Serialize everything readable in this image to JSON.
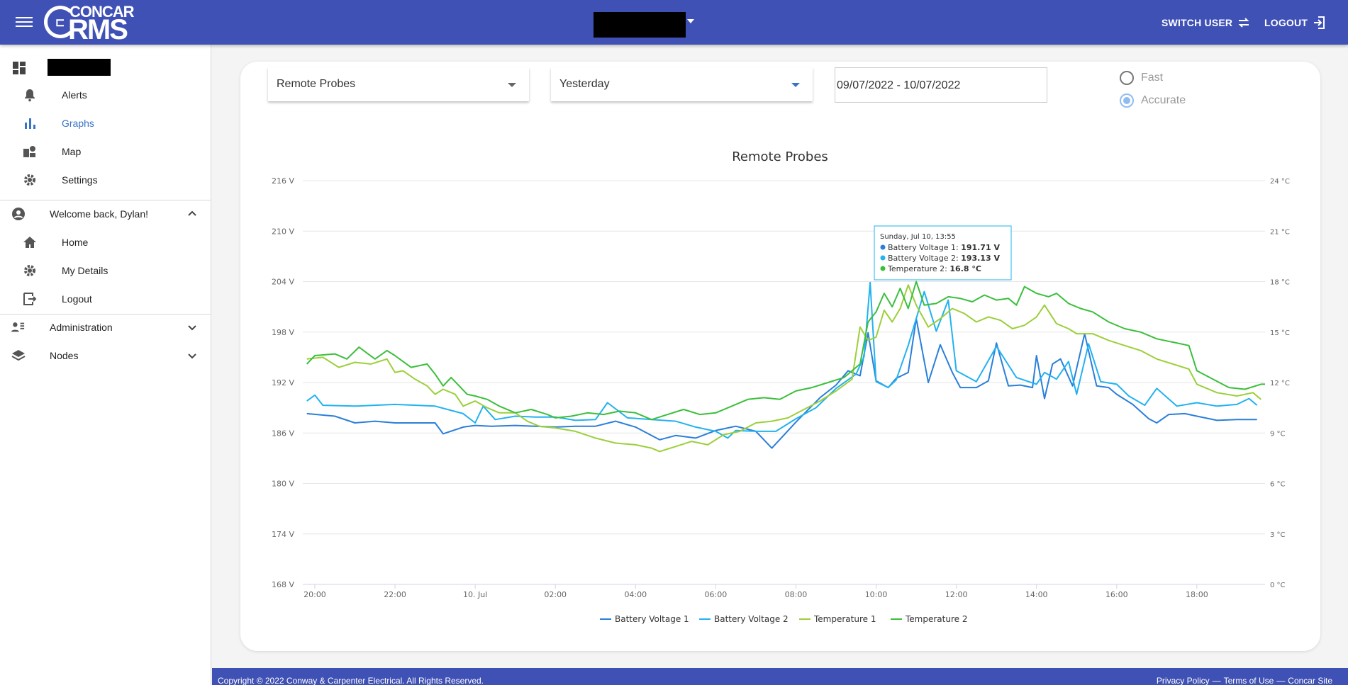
{
  "header": {
    "switch_user_label": "SWITCH USER",
    "logout_label": "LOGOUT",
    "logo_top": "CONCAR",
    "logo_bottom": "RMS"
  },
  "sidebar": {
    "items": [
      {
        "label": "Alerts",
        "icon": "bell-icon"
      },
      {
        "label": "Graphs",
        "icon": "bar-chart-icon",
        "active": true
      },
      {
        "label": "Map",
        "icon": "map-icon"
      },
      {
        "label": "Settings",
        "icon": "gear-icon"
      }
    ],
    "user_section": {
      "label": "Welcome back, Dylan!",
      "items": [
        {
          "label": "Home",
          "icon": "home-icon"
        },
        {
          "label": "My Details",
          "icon": "gear-icon"
        },
        {
          "label": "Logout",
          "icon": "logout-icon"
        }
      ]
    },
    "administration_label": "Administration",
    "nodes_label": "Nodes"
  },
  "controls": {
    "graph_select": "Remote Probes",
    "period_select": "Yesterday",
    "date_range": "09/07/2022 - 10/07/2022",
    "mode_options": [
      {
        "label": "Fast",
        "selected": false
      },
      {
        "label": "Accurate",
        "selected": true
      }
    ]
  },
  "colors": {
    "header": "#3f51b5",
    "battery_voltage_1": "#2a7fd9",
    "battery_voltage_2": "#22b2f0",
    "temperature_1": "#9ccf3a",
    "temperature_2": "#3bbf3b"
  },
  "tooltip": {
    "title": "Sunday, Jul 10, 13:55",
    "rows": [
      {
        "name": "Battery Voltage 1",
        "value": "191.71 V",
        "color": "#2a7fd9"
      },
      {
        "name": "Battery Voltage 2",
        "value": "193.13 V",
        "color": "#22b2f0"
      },
      {
        "name": "Temperature 2",
        "value": "16.8 °C",
        "color": "#3bbf3b"
      }
    ]
  },
  "chart_data": {
    "type": "line",
    "title": "Remote Probes",
    "y_left_ticks": [
      "216 V",
      "210 V",
      "204 V",
      "198 V",
      "192 V",
      "186 V",
      "180 V",
      "174 V",
      "168 V"
    ],
    "y_right_ticks": [
      "24 °C",
      "21 °C",
      "18 °C",
      "15 °C",
      "12 °C",
      "9 °C",
      "6 °C",
      "3 °C",
      "0 °C"
    ],
    "ylim_left": [
      168,
      216
    ],
    "ylim_right": [
      0,
      24
    ],
    "x_ticks": [
      "20:00",
      "22:00",
      "10. Jul",
      "02:00",
      "04:00",
      "06:00",
      "08:00",
      "10:00",
      "12:00",
      "14:00",
      "16:00",
      "18:00"
    ],
    "x_hours": [
      -4,
      -2,
      0,
      2,
      4,
      6,
      8,
      10,
      12,
      14,
      16,
      18
    ],
    "xlim_hours": [
      -4.3,
      19.7
    ],
    "legend_position": "bottom",
    "series": [
      {
        "name": "Battery Voltage 1",
        "axis": "left",
        "points": [
          [
            -4.2,
            188.3
          ],
          [
            -3.5,
            188
          ],
          [
            -3,
            187.2
          ],
          [
            -2.5,
            187.4
          ],
          [
            -2,
            187.2
          ],
          [
            -1,
            187.2
          ],
          [
            -0.8,
            185.9
          ],
          [
            -0.3,
            186.7
          ],
          [
            0,
            186.9
          ],
          [
            0.4,
            186.8
          ],
          [
            1,
            186.9
          ],
          [
            1.5,
            186.8
          ],
          [
            2,
            186.7
          ],
          [
            2.5,
            186.8
          ],
          [
            3,
            186.8
          ],
          [
            3.5,
            187.4
          ],
          [
            4,
            186.7
          ],
          [
            4.6,
            185.2
          ],
          [
            5,
            185.7
          ],
          [
            5.5,
            185.4
          ],
          [
            6,
            186.3
          ],
          [
            6.5,
            186.8
          ],
          [
            7,
            186.2
          ],
          [
            7.4,
            184.2
          ],
          [
            8,
            187.3
          ],
          [
            8.6,
            190.2
          ],
          [
            9,
            191.7
          ],
          [
            9.3,
            193.4
          ],
          [
            9.6,
            192.8
          ],
          [
            9.8,
            197.9
          ],
          [
            10,
            192.2
          ],
          [
            10.3,
            191.4
          ],
          [
            10.5,
            192.5
          ],
          [
            10.8,
            193.2
          ],
          [
            11,
            199.6
          ],
          [
            11.3,
            192
          ],
          [
            11.6,
            196.5
          ],
          [
            11.9,
            193.2
          ],
          [
            12.1,
            191.4
          ],
          [
            12.5,
            191.4
          ],
          [
            12.8,
            192.2
          ],
          [
            13,
            196.7
          ],
          [
            13.3,
            191.6
          ],
          [
            13.6,
            191.7
          ],
          [
            13.9,
            191.4
          ],
          [
            14,
            195.2
          ],
          [
            14.2,
            190.1
          ],
          [
            14.4,
            194.2
          ],
          [
            14.6,
            194.8
          ],
          [
            14.9,
            191.6
          ],
          [
            15.2,
            197.8
          ],
          [
            15.5,
            191.6
          ],
          [
            15.8,
            191.4
          ],
          [
            16,
            190.6
          ],
          [
            16.4,
            189.4
          ],
          [
            16.8,
            187.7
          ],
          [
            17,
            187.2
          ],
          [
            17.3,
            188.2
          ],
          [
            17.7,
            188.3
          ],
          [
            18,
            188
          ],
          [
            18.5,
            187.5
          ],
          [
            19,
            187.6
          ],
          [
            19.5,
            187.6
          ]
        ]
      },
      {
        "name": "Battery Voltage 2",
        "axis": "left",
        "points": [
          [
            -4.2,
            189.8
          ],
          [
            -4,
            190.5
          ],
          [
            -3.8,
            189.3
          ],
          [
            -3,
            189.2
          ],
          [
            -2,
            189.4
          ],
          [
            -1,
            189.2
          ],
          [
            -0.3,
            188.3
          ],
          [
            0,
            187.2
          ],
          [
            0.2,
            189.2
          ],
          [
            0.5,
            187.6
          ],
          [
            1,
            188
          ],
          [
            1.5,
            187.9
          ],
          [
            2,
            187.9
          ],
          [
            2.5,
            187.5
          ],
          [
            3,
            187.6
          ],
          [
            3.3,
            189.6
          ],
          [
            3.8,
            187.8
          ],
          [
            4.4,
            187.6
          ],
          [
            5,
            187.4
          ],
          [
            5.5,
            186.7
          ],
          [
            6,
            186.2
          ],
          [
            6.3,
            185.4
          ],
          [
            6.5,
            186.3
          ],
          [
            7,
            186.2
          ],
          [
            7.5,
            186.2
          ],
          [
            8,
            187.7
          ],
          [
            8.5,
            189
          ],
          [
            9,
            191.3
          ],
          [
            9.5,
            193
          ],
          [
            9.7,
            195.1
          ],
          [
            9.85,
            203.9
          ],
          [
            10,
            192.1
          ],
          [
            10.3,
            191.4
          ],
          [
            10.5,
            192.3
          ],
          [
            10.8,
            196.4
          ],
          [
            11.2,
            202.8
          ],
          [
            11.5,
            198.1
          ],
          [
            11.8,
            201.8
          ],
          [
            12,
            193.4
          ],
          [
            12.5,
            192.1
          ],
          [
            13,
            196.3
          ],
          [
            13.5,
            192.6
          ],
          [
            14,
            191.8
          ],
          [
            14.2,
            193.2
          ],
          [
            14.5,
            192.4
          ],
          [
            14.8,
            194.5
          ],
          [
            15,
            190.6
          ],
          [
            15.3,
            196.6
          ],
          [
            15.6,
            192.1
          ],
          [
            16,
            191.8
          ],
          [
            16.3,
            190.4
          ],
          [
            16.7,
            189.3
          ],
          [
            17,
            191.3
          ],
          [
            17.5,
            189.2
          ],
          [
            18,
            189.6
          ],
          [
            18.5,
            189.2
          ],
          [
            19,
            189.4
          ],
          [
            19.3,
            190.1
          ],
          [
            19.5,
            189.3
          ]
        ]
      },
      {
        "name": "Temperature 1",
        "axis": "right",
        "points": [
          [
            -4.2,
            13.4
          ],
          [
            -3.8,
            13.5
          ],
          [
            -3.4,
            12.9
          ],
          [
            -3,
            13.2
          ],
          [
            -2.6,
            13.1
          ],
          [
            -2.2,
            13.4
          ],
          [
            -2,
            12.6
          ],
          [
            -1.8,
            12.7
          ],
          [
            -1.5,
            12.2
          ],
          [
            -1.2,
            11.8
          ],
          [
            -1,
            11.3
          ],
          [
            -0.8,
            11.6
          ],
          [
            -0.5,
            11.3
          ],
          [
            -0.3,
            10.6
          ],
          [
            0,
            10.9
          ],
          [
            0.3,
            10.5
          ],
          [
            0.6,
            10.2
          ],
          [
            1,
            10.2
          ],
          [
            1.3,
            9.7
          ],
          [
            1.6,
            9.4
          ],
          [
            2,
            9.3
          ],
          [
            2.5,
            9.1
          ],
          [
            3,
            8.7
          ],
          [
            3.5,
            8.4
          ],
          [
            4,
            8.3
          ],
          [
            4.4,
            8.1
          ],
          [
            4.6,
            7.9
          ],
          [
            5,
            8.2
          ],
          [
            5.4,
            8.5
          ],
          [
            5.8,
            8.3
          ],
          [
            6.2,
            8.9
          ],
          [
            6.6,
            9.1
          ],
          [
            7,
            9.6
          ],
          [
            7.4,
            9.7
          ],
          [
            7.8,
            9.9
          ],
          [
            8.2,
            10.4
          ],
          [
            8.6,
            10.9
          ],
          [
            9,
            11.5
          ],
          [
            9.4,
            12.2
          ],
          [
            9.6,
            15.3
          ],
          [
            9.8,
            14.5
          ],
          [
            10,
            14.7
          ],
          [
            10.2,
            16.3
          ],
          [
            10.4,
            15.6
          ],
          [
            10.6,
            16.4
          ],
          [
            10.8,
            17.8
          ],
          [
            11,
            16.6
          ],
          [
            11.3,
            15.3
          ],
          [
            11.6,
            15.8
          ],
          [
            11.9,
            16.4
          ],
          [
            12.2,
            16.1
          ],
          [
            12.5,
            15.6
          ],
          [
            12.8,
            15.9
          ],
          [
            13.1,
            15.7
          ],
          [
            13.4,
            15.2
          ],
          [
            13.7,
            15.4
          ],
          [
            14,
            15.9
          ],
          [
            14.2,
            16.6
          ],
          [
            14.5,
            15.5
          ],
          [
            14.8,
            15.2
          ],
          [
            15,
            14.9
          ],
          [
            15.4,
            14.9
          ],
          [
            15.8,
            14.5
          ],
          [
            16.2,
            14.2
          ],
          [
            16.6,
            13.9
          ],
          [
            17,
            13.4
          ],
          [
            17.4,
            13.1
          ],
          [
            17.8,
            12.8
          ],
          [
            18,
            11.9
          ],
          [
            18.5,
            11.4
          ],
          [
            19,
            11.2
          ],
          [
            19.4,
            11.4
          ],
          [
            19.6,
            11.0
          ]
        ]
      },
      {
        "name": "Temperature 2",
        "axis": "right",
        "points": [
          [
            -4.2,
            13.1
          ],
          [
            -4,
            13.6
          ],
          [
            -3.5,
            13.7
          ],
          [
            -3.2,
            13.4
          ],
          [
            -2.9,
            14.1
          ],
          [
            -2.5,
            13.4
          ],
          [
            -2.2,
            13.9
          ],
          [
            -2,
            13.6
          ],
          [
            -1.6,
            12.9
          ],
          [
            -1.2,
            13.1
          ],
          [
            -1,
            12.5
          ],
          [
            -0.8,
            11.8
          ],
          [
            -0.6,
            12.3
          ],
          [
            -0.2,
            11.3
          ],
          [
            0,
            11.2
          ],
          [
            0.3,
            11.0
          ],
          [
            0.6,
            10.6
          ],
          [
            1,
            10.2
          ],
          [
            1.4,
            10.4
          ],
          [
            1.8,
            10.1
          ],
          [
            2,
            9.9
          ],
          [
            2.4,
            10.0
          ],
          [
            2.8,
            10.2
          ],
          [
            3.2,
            10.1
          ],
          [
            3.6,
            10.3
          ],
          [
            4,
            10.2
          ],
          [
            4.4,
            9.8
          ],
          [
            4.8,
            10.1
          ],
          [
            5.2,
            10.4
          ],
          [
            5.6,
            10.1
          ],
          [
            6,
            10.2
          ],
          [
            6.4,
            10.6
          ],
          [
            6.8,
            11.0
          ],
          [
            7.2,
            11.1
          ],
          [
            7.6,
            11.0
          ],
          [
            8,
            11.5
          ],
          [
            8.4,
            11.7
          ],
          [
            8.8,
            12.0
          ],
          [
            9.2,
            12.3
          ],
          [
            9.6,
            13.1
          ],
          [
            9.8,
            15.6
          ],
          [
            10,
            16.2
          ],
          [
            10.2,
            17.3
          ],
          [
            10.4,
            16.5
          ],
          [
            10.6,
            17.6
          ],
          [
            10.8,
            16.4
          ],
          [
            11,
            18.0
          ],
          [
            11.2,
            16.6
          ],
          [
            11.5,
            16.7
          ],
          [
            11.8,
            17.1
          ],
          [
            12.1,
            17.0
          ],
          [
            12.4,
            16.8
          ],
          [
            12.7,
            17.2
          ],
          [
            13,
            16.9
          ],
          [
            13.3,
            17.0
          ],
          [
            13.5,
            16.6
          ],
          [
            13.7,
            17.7
          ],
          [
            14,
            17.3
          ],
          [
            14.3,
            17.1
          ],
          [
            14.5,
            17.3
          ],
          [
            14.8,
            16.7
          ],
          [
            15.1,
            16.4
          ],
          [
            15.4,
            16.2
          ],
          [
            15.8,
            15.6
          ],
          [
            16.2,
            15.2
          ],
          [
            16.6,
            15.0
          ],
          [
            17,
            14.6
          ],
          [
            17.4,
            14.4
          ],
          [
            17.8,
            14.2
          ],
          [
            18,
            12.7
          ],
          [
            18.4,
            12.2
          ],
          [
            18.8,
            11.7
          ],
          [
            19.2,
            11.6
          ],
          [
            19.6,
            11.9
          ],
          [
            19.7,
            11.9
          ]
        ]
      }
    ]
  },
  "footer": {
    "copyright": "Copyright © 2022 Conway & Carpenter Electrical. All Rights Reserved.",
    "privacy": "Privacy Policy",
    "sep1": "—",
    "terms": "Terms of Use",
    "sep2": "—",
    "site": "Concar Site"
  }
}
